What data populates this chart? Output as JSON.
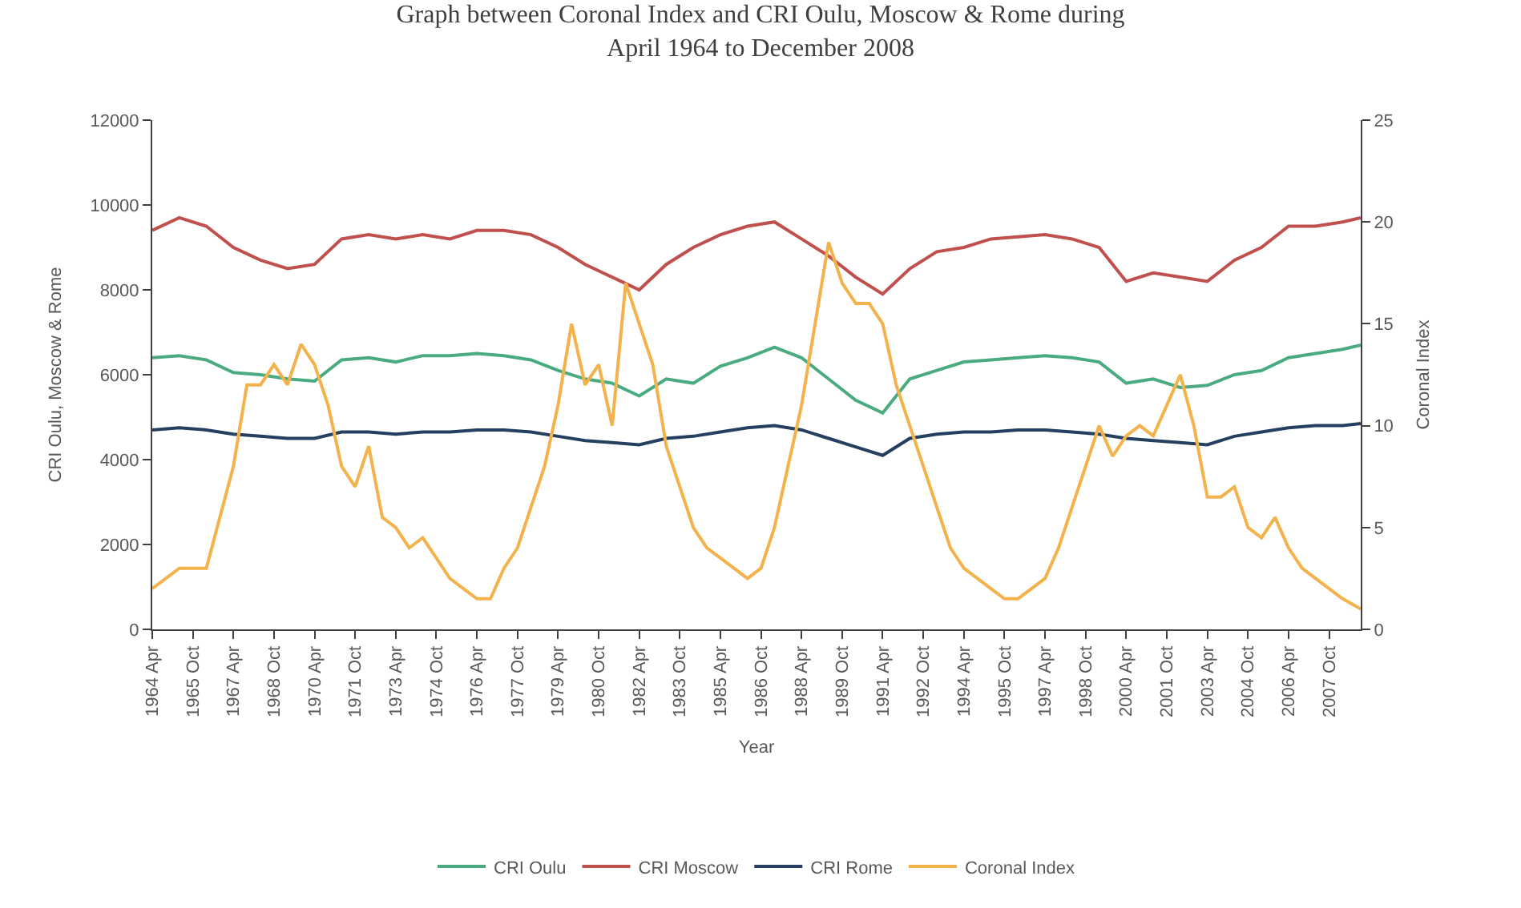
{
  "chart_data": {
    "type": "line",
    "title": "Graph between Coronal Index and CRI Oulu, Moscow & Rome during\nApril 1964 to December 2008",
    "xlabel": "Year",
    "ylabel": "CRI Oulu, Moscow & Rome",
    "y2label": "Coronal Index",
    "xlim": [
      "1964-04",
      "2008-12"
    ],
    "xticks": [
      {
        "value": "1964-04",
        "label": "1964 Apr"
      },
      {
        "value": "1965-10",
        "label": "1965 Oct"
      },
      {
        "value": "1967-04",
        "label": "1967 Apr"
      },
      {
        "value": "1968-10",
        "label": "1968 Oct"
      },
      {
        "value": "1970-04",
        "label": "1970 Apr"
      },
      {
        "value": "1971-10",
        "label": "1971 Oct"
      },
      {
        "value": "1973-04",
        "label": "1973 Apr"
      },
      {
        "value": "1974-10",
        "label": "1974 Oct"
      },
      {
        "value": "1976-04",
        "label": "1976 Apr"
      },
      {
        "value": "1977-10",
        "label": "1977 Oct"
      },
      {
        "value": "1979-04",
        "label": "1979 Apr"
      },
      {
        "value": "1980-10",
        "label": "1980 Oct"
      },
      {
        "value": "1982-04",
        "label": "1982 Apr"
      },
      {
        "value": "1983-10",
        "label": "1983 Oct"
      },
      {
        "value": "1985-04",
        "label": "1985 Apr"
      },
      {
        "value": "1986-10",
        "label": "1986 Oct"
      },
      {
        "value": "1988-04",
        "label": "1988 Apr"
      },
      {
        "value": "1989-10",
        "label": "1989 Oct"
      },
      {
        "value": "1991-04",
        "label": "1991 Apr"
      },
      {
        "value": "1992-10",
        "label": "1992 Oct"
      },
      {
        "value": "1994-04",
        "label": "1994 Apr"
      },
      {
        "value": "1995-10",
        "label": "1995 Oct"
      },
      {
        "value": "1997-04",
        "label": "1997 Apr"
      },
      {
        "value": "1998-10",
        "label": "1998 Oct"
      },
      {
        "value": "2000-04",
        "label": "2000 Apr"
      },
      {
        "value": "2001-10",
        "label": "2001 Oct"
      },
      {
        "value": "2003-04",
        "label": "2003 Apr"
      },
      {
        "value": "2004-10",
        "label": "2004 Oct"
      },
      {
        "value": "2006-04",
        "label": "2006 Apr"
      },
      {
        "value": "2007-10",
        "label": "2007 Oct"
      }
    ],
    "ylim": [
      0,
      12000
    ],
    "yticks": [
      0,
      2000,
      4000,
      6000,
      8000,
      10000,
      12000
    ],
    "y2lim": [
      0,
      25
    ],
    "y2ticks": [
      0,
      5,
      10,
      15,
      20,
      25
    ],
    "legend": "bottom",
    "marker": "none",
    "line_style": "solid",
    "series": [
      {
        "name": "CRI Oulu",
        "color": "#4bab80",
        "x": [
          "1964-04",
          "1965-04",
          "1966-04",
          "1967-04",
          "1968-04",
          "1969-04",
          "1970-04",
          "1971-04",
          "1972-04",
          "1973-04",
          "1974-04",
          "1975-04",
          "1976-04",
          "1977-04",
          "1978-04",
          "1979-04",
          "1980-04",
          "1981-04",
          "1982-04",
          "1983-04",
          "1984-04",
          "1985-04",
          "1986-04",
          "1987-04",
          "1988-04",
          "1989-04",
          "1990-04",
          "1991-04",
          "1992-04",
          "1993-04",
          "1994-04",
          "1995-04",
          "1996-04",
          "1997-04",
          "1998-04",
          "1999-04",
          "2000-04",
          "2001-04",
          "2002-04",
          "2003-04",
          "2004-04",
          "2005-04",
          "2006-04",
          "2007-04",
          "2008-04",
          "2008-12"
        ],
        "values": [
          6400,
          6450,
          6350,
          6050,
          6000,
          5900,
          5850,
          6350,
          6400,
          6300,
          6450,
          6450,
          6500,
          6450,
          6350,
          6100,
          5900,
          5800,
          5500,
          5900,
          5800,
          6200,
          6400,
          6650,
          6400,
          5900,
          5400,
          5100,
          5900,
          6100,
          6300,
          6350,
          6400,
          6450,
          6400,
          6300,
          5800,
          5900,
          5700,
          5750,
          6000,
          6100,
          6400,
          6500,
          6600,
          6700
        ]
      },
      {
        "name": "CRI Moscow",
        "color": "#c0504d",
        "x": [
          "1964-04",
          "1965-04",
          "1966-04",
          "1967-04",
          "1968-04",
          "1969-04",
          "1970-04",
          "1971-04",
          "1972-04",
          "1973-04",
          "1974-04",
          "1975-04",
          "1976-04",
          "1977-04",
          "1978-04",
          "1979-04",
          "1980-04",
          "1981-04",
          "1982-04",
          "1983-04",
          "1984-04",
          "1985-04",
          "1986-04",
          "1987-04",
          "1988-04",
          "1989-04",
          "1990-04",
          "1991-04",
          "1992-04",
          "1993-04",
          "1994-04",
          "1995-04",
          "1996-04",
          "1997-04",
          "1998-04",
          "1999-04",
          "2000-04",
          "2001-04",
          "2002-04",
          "2003-04",
          "2004-04",
          "2005-04",
          "2006-04",
          "2007-04",
          "2008-04",
          "2008-12"
        ],
        "values": [
          9400,
          9700,
          9500,
          9000,
          8700,
          8500,
          8600,
          9200,
          9300,
          9200,
          9300,
          9200,
          9400,
          9400,
          9300,
          9000,
          8600,
          8300,
          8000,
          8600,
          9000,
          9300,
          9500,
          9600,
          9200,
          8800,
          8300,
          7900,
          8500,
          8900,
          9000,
          9200,
          9250,
          9300,
          9200,
          9000,
          8200,
          8400,
          8300,
          8200,
          8700,
          9000,
          9500,
          9500,
          9600,
          9700
        ]
      },
      {
        "name": "CRI Rome",
        "color": "#243f60",
        "x": [
          "1964-04",
          "1965-04",
          "1966-04",
          "1967-04",
          "1968-04",
          "1969-04",
          "1970-04",
          "1971-04",
          "1972-04",
          "1973-04",
          "1974-04",
          "1975-04",
          "1976-04",
          "1977-04",
          "1978-04",
          "1979-04",
          "1980-04",
          "1981-04",
          "1982-04",
          "1983-04",
          "1984-04",
          "1985-04",
          "1986-04",
          "1987-04",
          "1988-04",
          "1989-04",
          "1990-04",
          "1991-04",
          "1992-04",
          "1993-04",
          "1994-04",
          "1995-04",
          "1996-04",
          "1997-04",
          "1998-04",
          "1999-04",
          "2000-04",
          "2001-04",
          "2002-04",
          "2003-04",
          "2004-04",
          "2005-04",
          "2006-04",
          "2007-04",
          "2008-04",
          "2008-12"
        ],
        "values": [
          4700,
          4750,
          4700,
          4600,
          4550,
          4500,
          4500,
          4650,
          4650,
          4600,
          4650,
          4650,
          4700,
          4700,
          4650,
          4550,
          4450,
          4400,
          4350,
          4500,
          4550,
          4650,
          4750,
          4800,
          4700,
          4500,
          4300,
          4100,
          4500,
          4600,
          4650,
          4650,
          4700,
          4700,
          4650,
          4600,
          4500,
          4450,
          4400,
          4350,
          4550,
          4650,
          4750,
          4800,
          4800,
          4850
        ]
      },
      {
        "name": "Coronal Index",
        "color": "#f3b24c",
        "axis": "y2",
        "x": [
          "1964-04",
          "1964-10",
          "1965-04",
          "1965-10",
          "1966-04",
          "1966-10",
          "1967-04",
          "1967-10",
          "1968-04",
          "1968-10",
          "1969-04",
          "1969-10",
          "1970-04",
          "1970-10",
          "1971-04",
          "1971-10",
          "1972-04",
          "1972-10",
          "1973-04",
          "1973-10",
          "1974-04",
          "1974-10",
          "1975-04",
          "1975-10",
          "1976-04",
          "1976-10",
          "1977-04",
          "1977-10",
          "1978-04",
          "1978-10",
          "1979-04",
          "1979-10",
          "1980-04",
          "1980-10",
          "1981-04",
          "1981-10",
          "1982-04",
          "1982-10",
          "1983-04",
          "1983-10",
          "1984-04",
          "1984-10",
          "1985-04",
          "1985-10",
          "1986-04",
          "1986-10",
          "1987-04",
          "1987-10",
          "1988-04",
          "1988-10",
          "1989-04",
          "1989-10",
          "1990-04",
          "1990-10",
          "1991-04",
          "1991-10",
          "1992-04",
          "1992-10",
          "1993-04",
          "1993-10",
          "1994-04",
          "1994-10",
          "1995-04",
          "1995-10",
          "1996-04",
          "1996-10",
          "1997-04",
          "1997-10",
          "1998-04",
          "1998-10",
          "1999-04",
          "1999-10",
          "2000-04",
          "2000-10",
          "2001-04",
          "2001-10",
          "2002-04",
          "2002-10",
          "2003-04",
          "2003-10",
          "2004-04",
          "2004-10",
          "2005-04",
          "2005-10",
          "2006-04",
          "2006-10",
          "2007-04",
          "2007-10",
          "2008-04",
          "2008-12"
        ],
        "values": [
          2,
          2.5,
          3,
          3,
          3,
          5.5,
          8,
          12,
          12,
          13,
          12,
          14,
          13,
          11,
          8,
          7,
          9,
          5.5,
          5,
          4,
          4.5,
          3.5,
          2.5,
          2,
          1.5,
          1.5,
          3,
          4,
          6,
          8,
          11,
          15,
          12,
          13,
          10,
          17,
          15,
          13,
          9,
          7,
          5,
          4,
          3.5,
          3,
          2.5,
          3,
          5,
          8,
          11,
          15,
          19,
          17,
          16,
          16,
          15,
          12,
          10,
          8,
          6,
          4,
          3,
          2.5,
          2,
          1.5,
          1.5,
          2,
          2.5,
          4,
          6,
          8,
          10,
          8.5,
          9.5,
          10,
          9.5,
          11,
          12.5,
          10,
          6.5,
          6.5,
          7,
          5,
          4.5,
          5.5,
          4,
          3,
          2.5,
          2,
          1.5,
          1
        ]
      }
    ]
  }
}
